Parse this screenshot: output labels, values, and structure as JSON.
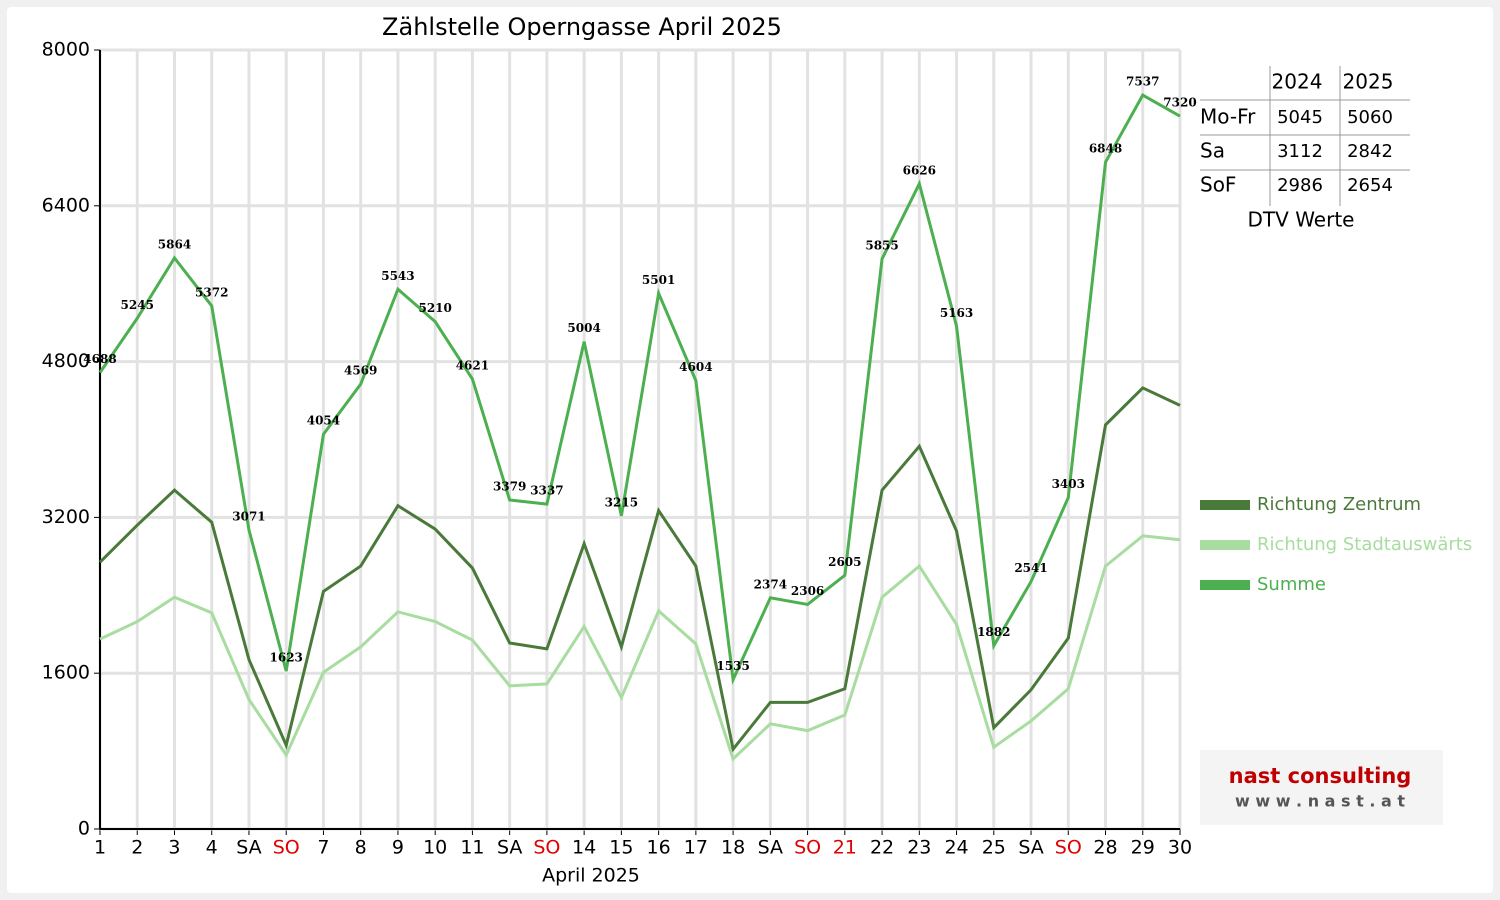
{
  "chart_data": {
    "type": "line",
    "title": "Zählstelle Operngasse April 2025",
    "x_label": "April 2025",
    "categories": [
      "1",
      "2",
      "3",
      "4",
      "SA",
      "SO",
      "7",
      "8",
      "9",
      "10",
      "11",
      "SA",
      "SO",
      "14",
      "15",
      "16",
      "17",
      "18",
      "SA",
      "SO",
      "21",
      "22",
      "23",
      "24",
      "25",
      "SA",
      "SO",
      "28",
      "29",
      "30"
    ],
    "category_colors": [
      "#000",
      "#000",
      "#000",
      "#000",
      "#000",
      "#e00000",
      "#000",
      "#000",
      "#000",
      "#000",
      "#000",
      "#000",
      "#e00000",
      "#000",
      "#000",
      "#000",
      "#000",
      "#000",
      "#000",
      "#e00000",
      "#e00000",
      "#000",
      "#000",
      "#000",
      "#000",
      "#000",
      "#e00000",
      "#000",
      "#000",
      "#000"
    ],
    "ylim": [
      0,
      8000
    ],
    "yticks": [
      0,
      1600,
      3200,
      4800,
      6400,
      8000
    ],
    "grid": true,
    "series": [
      {
        "name": "Richtung Zentrum",
        "color": "#4a7a3a",
        "values": [
          2740,
          3120,
          3480,
          3150,
          1740,
          860,
          2440,
          2700,
          3320,
          3080,
          2680,
          1910,
          1850,
          2930,
          1870,
          3270,
          2700,
          820,
          1300,
          1300,
          1440,
          3480,
          3930,
          3060,
          1040,
          1430,
          1960,
          4150,
          4530,
          4350
        ]
      },
      {
        "name": "Richtung Stadtauswärts",
        "color": "#a8dca0",
        "values": [
          1950,
          2130,
          2380,
          2220,
          1330,
          760,
          1610,
          1870,
          2230,
          2130,
          1940,
          1470,
          1490,
          2080,
          1350,
          2240,
          1900,
          720,
          1080,
          1010,
          1170,
          2380,
          2700,
          2100,
          840,
          1110,
          1440,
          2700,
          3010,
          2970
        ]
      },
      {
        "name": "Summe",
        "color": "#4caf50",
        "values": [
          4688,
          5245,
          5864,
          5372,
          3071,
          1623,
          4054,
          4569,
          5543,
          5210,
          4621,
          3379,
          3337,
          5004,
          3215,
          5501,
          4604,
          1535,
          2374,
          2306,
          2605,
          5855,
          6626,
          5163,
          1882,
          2541,
          3403,
          6848,
          7537,
          7320
        ],
        "labels": true
      }
    ]
  },
  "table": {
    "caption": "DTV Werte",
    "header": [
      "2024",
      "2025"
    ],
    "rows": [
      [
        "Mo-Fr",
        "5045",
        "5060"
      ],
      [
        "Sa",
        "3112",
        "2842"
      ],
      [
        "SoF",
        "2986",
        "2654"
      ]
    ]
  },
  "logo": {
    "name": "nast consulting",
    "url": "w w w . n a s t . a t"
  }
}
